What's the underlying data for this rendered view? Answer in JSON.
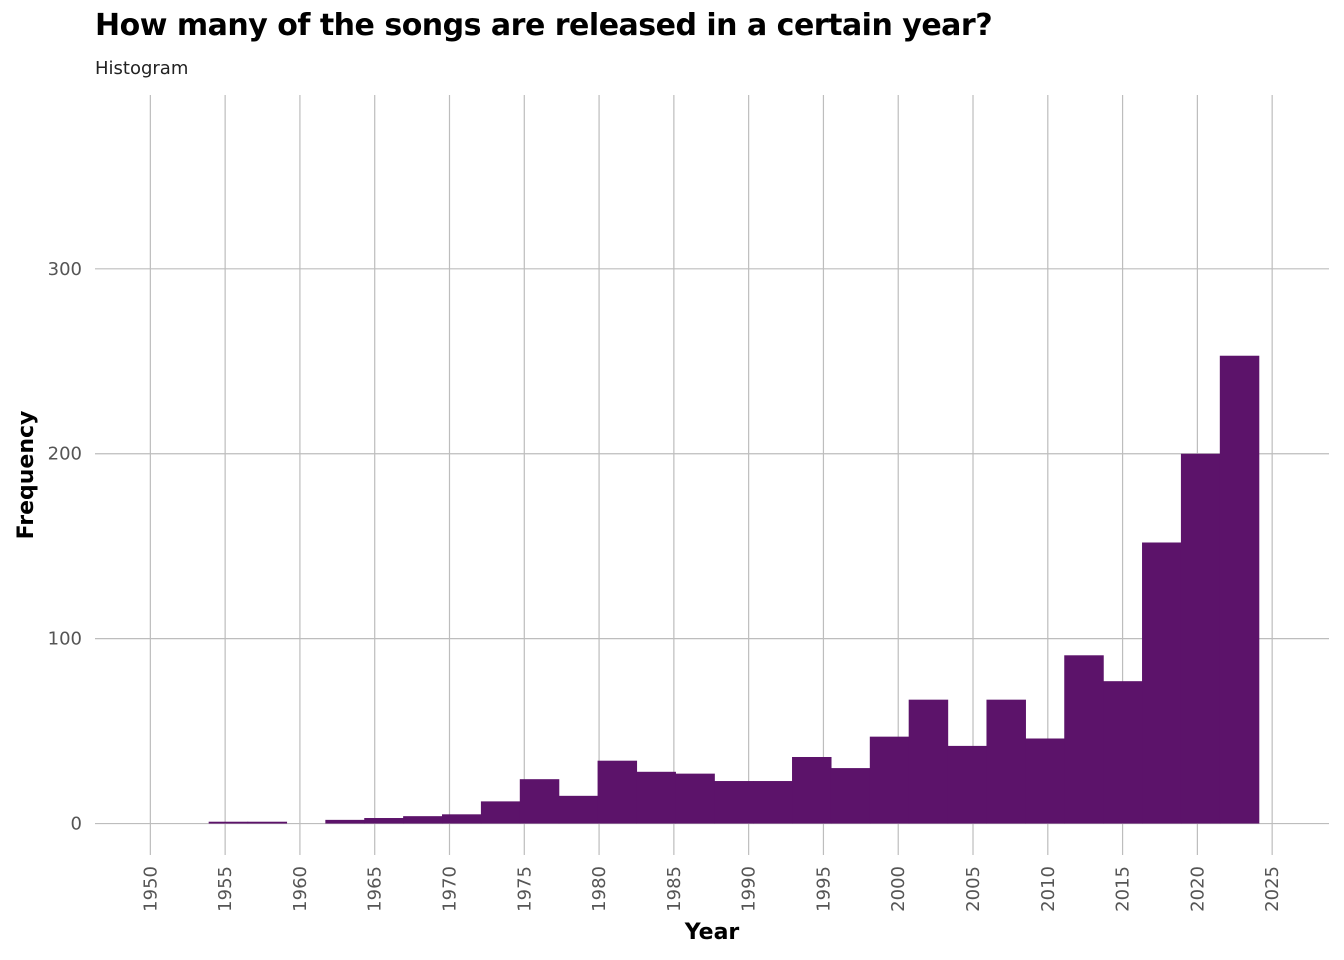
{
  "title": "How many of the songs are released in a certain year?",
  "subtitle": "Histogram",
  "chart_data": {
    "type": "bar",
    "title": "How many of the songs are released in a certain year?",
    "subtitle": "Histogram",
    "xlabel": "Year",
    "ylabel": "Frequency",
    "x_ticks": [
      1950,
      1955,
      1960,
      1965,
      1970,
      1975,
      1980,
      1985,
      1990,
      1995,
      2000,
      2005,
      2010,
      2015,
      2020,
      2025
    ],
    "y_ticks": [
      0,
      100,
      200,
      300
    ],
    "xlim": [
      1946.3,
      2028.8
    ],
    "ylim": [
      -17,
      394
    ],
    "grid": true,
    "bar_color": "#5c136a",
    "bins": [
      {
        "start": 1953.9,
        "end": 1956.5,
        "count": 1
      },
      {
        "start": 1956.5,
        "end": 1959.1,
        "count": 1
      },
      {
        "start": 1959.1,
        "end": 1961.7,
        "count": 0
      },
      {
        "start": 1961.7,
        "end": 1964.3,
        "count": 2
      },
      {
        "start": 1964.3,
        "end": 1966.9,
        "count": 3
      },
      {
        "start": 1966.9,
        "end": 1969.5,
        "count": 4
      },
      {
        "start": 1969.5,
        "end": 1972.1,
        "count": 5
      },
      {
        "start": 1972.1,
        "end": 1974.7,
        "count": 12
      },
      {
        "start": 1974.7,
        "end": 1977.3,
        "count": 24
      },
      {
        "start": 1977.3,
        "end": 1979.9,
        "count": 15
      },
      {
        "start": 1979.9,
        "end": 1982.5,
        "count": 34
      },
      {
        "start": 1982.5,
        "end": 1985.1,
        "count": 28
      },
      {
        "start": 1985.1,
        "end": 1987.7,
        "count": 27
      },
      {
        "start": 1987.7,
        "end": 1990.3,
        "count": 23
      },
      {
        "start": 1990.3,
        "end": 1992.9,
        "count": 23
      },
      {
        "start": 1992.9,
        "end": 1995.5,
        "count": 36
      },
      {
        "start": 1995.5,
        "end": 1998.1,
        "count": 30
      },
      {
        "start": 1998.1,
        "end": 2000.7,
        "count": 47
      },
      {
        "start": 2000.7,
        "end": 2003.3,
        "count": 67
      },
      {
        "start": 2003.3,
        "end": 2005.9,
        "count": 42
      },
      {
        "start": 2005.9,
        "end": 2008.5,
        "count": 67
      },
      {
        "start": 2008.5,
        "end": 2011.1,
        "count": 46
      },
      {
        "start": 2011.1,
        "end": 2013.7,
        "count": 91
      },
      {
        "start": 2013.7,
        "end": 2016.3,
        "count": 77
      },
      {
        "start": 2016.3,
        "end": 2018.9,
        "count": 152
      },
      {
        "start": 2018.9,
        "end": 2021.5,
        "count": 200
      },
      {
        "start": 2021.5,
        "end": 2024.1,
        "count": 253
      }
    ]
  }
}
